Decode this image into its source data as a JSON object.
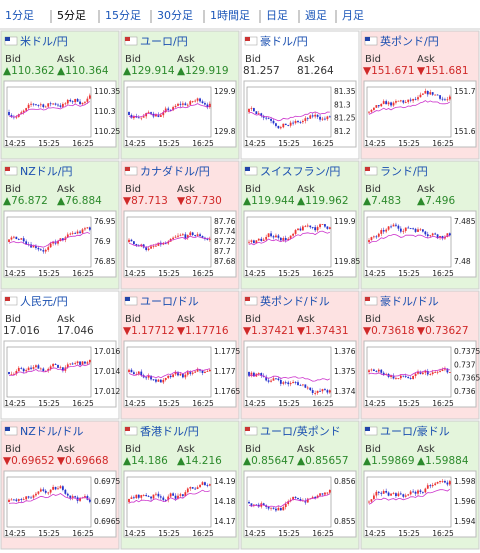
{
  "tabs": [
    "1分足",
    "5分足",
    "15分足",
    "30分足",
    "1時間足",
    "日足",
    "週足",
    "月足"
  ],
  "selected_tab": 1,
  "bid_label": "Bid",
  "ask_label": "Ask",
  "times": [
    "14:25",
    "15:25",
    "16:25"
  ],
  "pairs": [
    {
      "name": "米ドル/円",
      "trend": "up",
      "bid": "▲110.362",
      "ask": "▲110.364",
      "ticks": [
        "110.35",
        "110.3",
        "110.25"
      ]
    },
    {
      "name": "ユーロ/円",
      "trend": "up",
      "bid": "▲129.914",
      "ask": "▲129.919",
      "ticks": [
        "129.9",
        "129.8"
      ]
    },
    {
      "name": "豪ドル/円",
      "trend": "flat",
      "bid": "81.257",
      "ask": "81.264",
      "ticks": [
        "81.35",
        "81.3",
        "81.25",
        "81.2"
      ]
    },
    {
      "name": "英ポンド/円",
      "trend": "down",
      "bid": "▼151.671",
      "ask": "▼151.681",
      "ticks": [
        "151.7",
        "151.6"
      ]
    },
    {
      "name": "NZドル/円",
      "trend": "up",
      "bid": "▲76.872",
      "ask": "▲76.884",
      "ticks": [
        "76.95",
        "76.9",
        "76.85"
      ]
    },
    {
      "name": "カナダドル/円",
      "trend": "down",
      "bid": "▼87.713",
      "ask": "▼87.730",
      "ticks": [
        "87.76",
        "87.74",
        "87.72",
        "87.7",
        "87.68"
      ]
    },
    {
      "name": "スイスフラン/円",
      "trend": "up",
      "bid": "▲119.944",
      "ask": "▲119.962",
      "ticks": [
        "119.9",
        "119.85"
      ]
    },
    {
      "name": "ランド/円",
      "trend": "up",
      "bid": "▲7.483",
      "ask": "▲7.496",
      "ticks": [
        "7.485",
        "7.48"
      ]
    },
    {
      "name": "人民元/円",
      "trend": "flat",
      "bid": "17.016",
      "ask": "17.046",
      "ticks": [
        "17.016",
        "17.014",
        "17.012"
      ]
    },
    {
      "name": "ユーロ/ドル",
      "trend": "down",
      "bid": "▼1.17712",
      "ask": "▼1.17716",
      "ticks": [
        "1.1775",
        "1.177",
        "1.1765"
      ]
    },
    {
      "name": "英ポンド/ドル",
      "trend": "down",
      "bid": "▼1.37421",
      "ask": "▼1.37431",
      "ticks": [
        "1.376",
        "1.375",
        "1.374"
      ]
    },
    {
      "name": "豪ドル/ドル",
      "trend": "down",
      "bid": "▼0.73618",
      "ask": "▼0.73627",
      "ticks": [
        "0.7375",
        "0.737",
        "0.7365",
        "0.736"
      ]
    },
    {
      "name": "NZドル/ドル",
      "trend": "down",
      "bid": "▼0.69652",
      "ask": "▼0.69668",
      "ticks": [
        "0.6975",
        "0.697",
        "0.6965"
      ]
    },
    {
      "name": "香港ドル/円",
      "trend": "up",
      "bid": "▲14.186",
      "ask": "▲14.216",
      "ticks": [
        "14.19",
        "14.18",
        "14.17"
      ]
    },
    {
      "name": "ユーロ/英ポンド",
      "trend": "up",
      "bid": "▲0.85647",
      "ask": "▲0.85657",
      "ticks": [
        "0.856",
        "0.855"
      ]
    },
    {
      "name": "ユーロ/豪ドル",
      "trend": "up",
      "bid": "▲1.59869",
      "ask": "▲1.59884",
      "ticks": [
        "1.598",
        "1.596",
        "1.594"
      ]
    }
  ]
}
